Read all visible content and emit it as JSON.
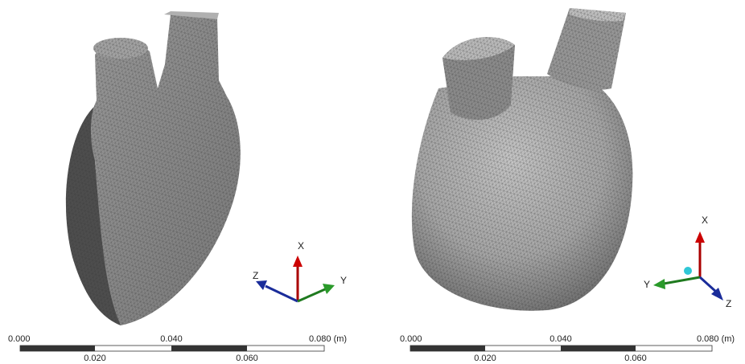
{
  "panels": [
    {
      "scale": {
        "top": [
          "0.000",
          "0.040",
          "0.080 (m)"
        ],
        "bottom": [
          "0.020",
          "0.060"
        ]
      },
      "axes": {
        "x": "X",
        "y": "Y",
        "z": "Z"
      }
    },
    {
      "scale": {
        "top": [
          "0.000",
          "0.040",
          "0.080 (m)"
        ],
        "bottom": [
          "0.020",
          "0.060"
        ]
      },
      "axes": {
        "x": "X",
        "y": "Y",
        "z": "Z"
      }
    }
  ]
}
